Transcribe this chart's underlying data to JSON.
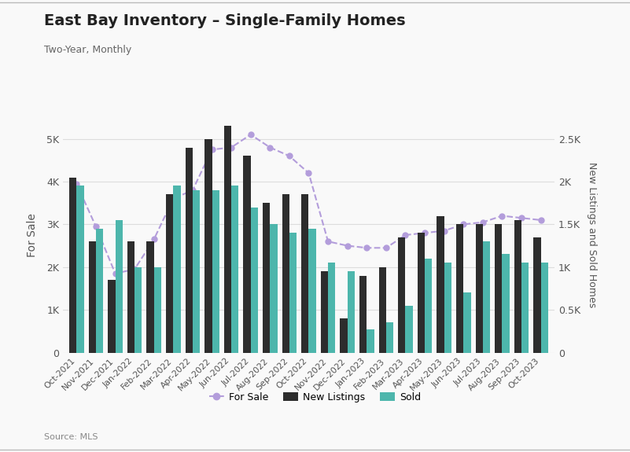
{
  "title": "East Bay Inventory – Single-Family Homes",
  "subtitle": "Two-Year, Monthly",
  "source": "Source: MLS",
  "ylabel_left": "For Sale",
  "ylabel_right": "New Listings and Sold Homes",
  "categories": [
    "Oct-2021",
    "Nov-2021",
    "Dec-2021",
    "Jan-2022",
    "Feb-2022",
    "Mar-2022",
    "Apr-2022",
    "May-2022",
    "Jun-2022",
    "Jul-2022",
    "Aug-2022",
    "Sep-2022",
    "Oct-2022",
    "Nov-2022",
    "Dec-2022",
    "Jan-2023",
    "Feb-2023",
    "Mar-2023",
    "Apr-2023",
    "May-2023",
    "Jun-2023",
    "Jul-2023",
    "Aug-2023",
    "Sep-2023",
    "Oct-2023"
  ],
  "for_sale": [
    3950,
    2950,
    1850,
    1950,
    2650,
    3600,
    3800,
    4750,
    4800,
    5100,
    4800,
    4600,
    4200,
    2600,
    2500,
    2450,
    2450,
    2750,
    2800,
    2850,
    3000,
    3050,
    3200,
    3150,
    3100
  ],
  "new_listings": [
    2050,
    1300,
    850,
    1300,
    1300,
    1850,
    2400,
    2500,
    2650,
    2300,
    1750,
    1850,
    1850,
    950,
    400,
    900,
    1000,
    1350,
    1400,
    1600,
    1500,
    1500,
    1500,
    1550,
    1350
  ],
  "sold": [
    1950,
    1450,
    1550,
    1000,
    1000,
    1950,
    1900,
    1900,
    1950,
    1700,
    1500,
    1400,
    1450,
    1050,
    950,
    275,
    350,
    550,
    1100,
    1050,
    700,
    1300,
    1150,
    1050,
    1050
  ],
  "for_sale_color": "#b39ddb",
  "new_listings_color": "#2d2d2d",
  "sold_color": "#4db6ac",
  "background_color": "#f9f9f9",
  "grid_color": "#dddddd",
  "ylim_left": [
    0,
    5500
  ],
  "ylim_right": [
    0,
    2750
  ],
  "yticks_left": [
    0,
    1000,
    2000,
    3000,
    4000,
    5000
  ],
  "ytick_labels_left": [
    "0",
    "1K",
    "2K",
    "3K",
    "4K",
    "5K"
  ],
  "yticks_right": [
    0,
    500,
    1000,
    1500,
    2000,
    2500
  ],
  "ytick_labels_right": [
    "0",
    "0.5K",
    "1K",
    "1.5K",
    "2K",
    "2.5K"
  ],
  "figsize": [
    8.01,
    5.75
  ],
  "dpi": 100
}
